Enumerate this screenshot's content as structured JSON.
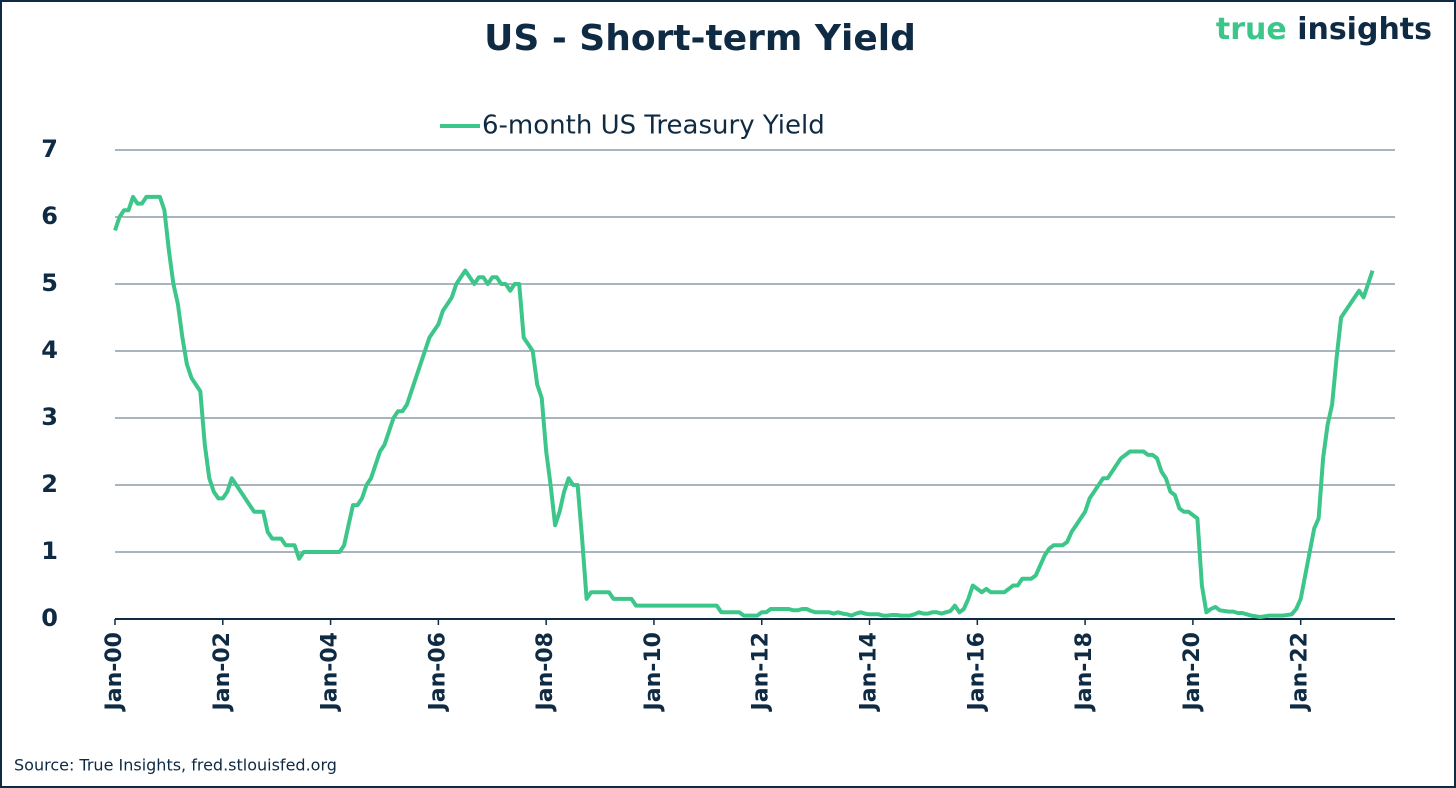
{
  "chart_data": {
    "type": "line",
    "title": "US - Short-term Yield",
    "brand": {
      "first": "true",
      "second": "insights"
    },
    "source": "Source: True Insights, fred.stlouisfed.org",
    "x": [
      "2000-01",
      "2000-02",
      "2000-03",
      "2000-04",
      "2000-05",
      "2000-06",
      "2000-07",
      "2000-08",
      "2000-09",
      "2000-10",
      "2000-11",
      "2000-12",
      "2001-01",
      "2001-02",
      "2001-03",
      "2001-04",
      "2001-05",
      "2001-06",
      "2001-07",
      "2001-08",
      "2001-09",
      "2001-10",
      "2001-11",
      "2001-12",
      "2002-01",
      "2002-02",
      "2002-03",
      "2002-04",
      "2002-05",
      "2002-06",
      "2002-07",
      "2002-08",
      "2002-09",
      "2002-10",
      "2002-11",
      "2002-12",
      "2003-01",
      "2003-02",
      "2003-03",
      "2003-04",
      "2003-05",
      "2003-06",
      "2003-07",
      "2003-08",
      "2003-09",
      "2003-10",
      "2003-11",
      "2003-12",
      "2004-01",
      "2004-02",
      "2004-03",
      "2004-04",
      "2004-05",
      "2004-06",
      "2004-07",
      "2004-08",
      "2004-09",
      "2004-10",
      "2004-11",
      "2004-12",
      "2005-01",
      "2005-02",
      "2005-03",
      "2005-04",
      "2005-05",
      "2005-06",
      "2005-07",
      "2005-08",
      "2005-09",
      "2005-10",
      "2005-11",
      "2005-12",
      "2006-01",
      "2006-02",
      "2006-03",
      "2006-04",
      "2006-05",
      "2006-06",
      "2006-07",
      "2006-08",
      "2006-09",
      "2006-10",
      "2006-11",
      "2006-12",
      "2007-01",
      "2007-02",
      "2007-03",
      "2007-04",
      "2007-05",
      "2007-06",
      "2007-07",
      "2007-08",
      "2007-09",
      "2007-10",
      "2007-11",
      "2007-12",
      "2008-01",
      "2008-02",
      "2008-03",
      "2008-04",
      "2008-05",
      "2008-06",
      "2008-07",
      "2008-08",
      "2008-09",
      "2008-10",
      "2008-11",
      "2008-12",
      "2009-01",
      "2009-02",
      "2009-03",
      "2009-04",
      "2009-05",
      "2009-06",
      "2009-07",
      "2009-08",
      "2009-09",
      "2009-10",
      "2009-11",
      "2009-12",
      "2010-01",
      "2010-02",
      "2010-03",
      "2010-04",
      "2010-05",
      "2010-06",
      "2010-07",
      "2010-08",
      "2010-09",
      "2010-10",
      "2010-11",
      "2010-12",
      "2011-01",
      "2011-02",
      "2011-03",
      "2011-04",
      "2011-05",
      "2011-06",
      "2011-07",
      "2011-08",
      "2011-09",
      "2011-10",
      "2011-11",
      "2011-12",
      "2012-01",
      "2012-02",
      "2012-03",
      "2012-04",
      "2012-05",
      "2012-06",
      "2012-07",
      "2012-08",
      "2012-09",
      "2012-10",
      "2012-11",
      "2012-12",
      "2013-01",
      "2013-02",
      "2013-03",
      "2013-04",
      "2013-05",
      "2013-06",
      "2013-07",
      "2013-08",
      "2013-09",
      "2013-10",
      "2013-11",
      "2013-12",
      "2014-01",
      "2014-02",
      "2014-03",
      "2014-04",
      "2014-05",
      "2014-06",
      "2014-07",
      "2014-08",
      "2014-09",
      "2014-10",
      "2014-11",
      "2014-12",
      "2015-01",
      "2015-02",
      "2015-03",
      "2015-04",
      "2015-05",
      "2015-06",
      "2015-07",
      "2015-08",
      "2015-09",
      "2015-10",
      "2015-11",
      "2015-12",
      "2016-01",
      "2016-02",
      "2016-03",
      "2016-04",
      "2016-05",
      "2016-06",
      "2016-07",
      "2016-08",
      "2016-09",
      "2016-10",
      "2016-11",
      "2016-12",
      "2017-01",
      "2017-02",
      "2017-03",
      "2017-04",
      "2017-05",
      "2017-06",
      "2017-07",
      "2017-08",
      "2017-09",
      "2017-10",
      "2017-11",
      "2017-12",
      "2018-01",
      "2018-02",
      "2018-03",
      "2018-04",
      "2018-05",
      "2018-06",
      "2018-07",
      "2018-08",
      "2018-09",
      "2018-10",
      "2018-11",
      "2018-12",
      "2019-01",
      "2019-02",
      "2019-03",
      "2019-04",
      "2019-05",
      "2019-06",
      "2019-07",
      "2019-08",
      "2019-09",
      "2019-10",
      "2019-11",
      "2019-12",
      "2020-01",
      "2020-02",
      "2020-03",
      "2020-04",
      "2020-05",
      "2020-06",
      "2020-07",
      "2020-08",
      "2020-09",
      "2020-10",
      "2020-11",
      "2020-12",
      "2021-01",
      "2021-02",
      "2021-03",
      "2021-04",
      "2021-05",
      "2021-06",
      "2021-07",
      "2021-08",
      "2021-09",
      "2021-10",
      "2021-11",
      "2021-12",
      "2022-01",
      "2022-02",
      "2022-03",
      "2022-04",
      "2022-05",
      "2022-06",
      "2022-07",
      "2022-08",
      "2022-09",
      "2022-10",
      "2022-11",
      "2022-12",
      "2023-01",
      "2023-02",
      "2023-03",
      "2023-04",
      "2023-05"
    ],
    "series": [
      {
        "name": "6-month US Treasury Yield",
        "color": "#3cc68a",
        "values": [
          5.8,
          6.0,
          6.1,
          6.1,
          6.3,
          6.2,
          6.2,
          6.3,
          6.3,
          6.3,
          6.3,
          6.1,
          5.5,
          5.0,
          4.7,
          4.2,
          3.8,
          3.6,
          3.5,
          3.4,
          2.6,
          2.1,
          1.9,
          1.8,
          1.8,
          1.9,
          2.1,
          2.0,
          1.9,
          1.8,
          1.7,
          1.6,
          1.6,
          1.6,
          1.3,
          1.2,
          1.2,
          1.2,
          1.1,
          1.1,
          1.1,
          0.9,
          1.0,
          1.0,
          1.0,
          1.0,
          1.0,
          1.0,
          1.0,
          1.0,
          1.0,
          1.1,
          1.4,
          1.7,
          1.7,
          1.8,
          2.0,
          2.1,
          2.3,
          2.5,
          2.6,
          2.8,
          3.0,
          3.1,
          3.1,
          3.2,
          3.4,
          3.6,
          3.8,
          4.0,
          4.2,
          4.3,
          4.4,
          4.6,
          4.7,
          4.8,
          5.0,
          5.1,
          5.2,
          5.1,
          5.0,
          5.1,
          5.1,
          5.0,
          5.1,
          5.1,
          5.0,
          5.0,
          4.9,
          5.0,
          5.0,
          4.2,
          4.1,
          4.0,
          3.5,
          3.3,
          2.5,
          2.0,
          1.4,
          1.6,
          1.9,
          2.1,
          2.0,
          2.0,
          1.2,
          0.3,
          0.4,
          0.4,
          0.4,
          0.4,
          0.4,
          0.3,
          0.3,
          0.3,
          0.3,
          0.3,
          0.2,
          0.2,
          0.2,
          0.2,
          0.2,
          0.2,
          0.2,
          0.2,
          0.2,
          0.2,
          0.2,
          0.2,
          0.2,
          0.2,
          0.2,
          0.2,
          0.2,
          0.2,
          0.2,
          0.1,
          0.1,
          0.1,
          0.1,
          0.1,
          0.05,
          0.05,
          0.05,
          0.05,
          0.1,
          0.1,
          0.15,
          0.15,
          0.15,
          0.15,
          0.15,
          0.13,
          0.13,
          0.15,
          0.15,
          0.12,
          0.1,
          0.1,
          0.1,
          0.1,
          0.08,
          0.1,
          0.08,
          0.07,
          0.05,
          0.08,
          0.1,
          0.08,
          0.07,
          0.07,
          0.07,
          0.05,
          0.05,
          0.06,
          0.06,
          0.05,
          0.05,
          0.05,
          0.07,
          0.1,
          0.08,
          0.08,
          0.1,
          0.1,
          0.08,
          0.1,
          0.12,
          0.2,
          0.1,
          0.15,
          0.3,
          0.5,
          0.45,
          0.4,
          0.45,
          0.4,
          0.4,
          0.4,
          0.4,
          0.45,
          0.5,
          0.5,
          0.6,
          0.6,
          0.6,
          0.65,
          0.8,
          0.95,
          1.05,
          1.1,
          1.1,
          1.1,
          1.15,
          1.3,
          1.4,
          1.5,
          1.6,
          1.8,
          1.9,
          2.0,
          2.1,
          2.1,
          2.2,
          2.3,
          2.4,
          2.45,
          2.5,
          2.5,
          2.5,
          2.5,
          2.45,
          2.45,
          2.4,
          2.2,
          2.1,
          1.9,
          1.85,
          1.65,
          1.6,
          1.6,
          1.55,
          1.5,
          0.5,
          0.1,
          0.15,
          0.18,
          0.13,
          0.12,
          0.11,
          0.11,
          0.09,
          0.09,
          0.07,
          0.05,
          0.04,
          0.03,
          0.04,
          0.05,
          0.05,
          0.05,
          0.05,
          0.06,
          0.07,
          0.15,
          0.3,
          0.65,
          1.0,
          1.35,
          1.5,
          2.4,
          2.9,
          3.2,
          3.9,
          4.5,
          4.6,
          4.7,
          4.8,
          4.9,
          4.8,
          5.0,
          5.2
        ]
      }
    ],
    "xlim": [
      "2000-01",
      "2023-10"
    ],
    "xticks": [
      {
        "value": "2000-01",
        "label": "Jan-00"
      },
      {
        "value": "2002-01",
        "label": "Jan-02"
      },
      {
        "value": "2004-01",
        "label": "Jan-04"
      },
      {
        "value": "2006-01",
        "label": "Jan-06"
      },
      {
        "value": "2008-01",
        "label": "Jan-08"
      },
      {
        "value": "2010-01",
        "label": "Jan-10"
      },
      {
        "value": "2012-01",
        "label": "Jan-12"
      },
      {
        "value": "2014-01",
        "label": "Jan-14"
      },
      {
        "value": "2016-01",
        "label": "Jan-16"
      },
      {
        "value": "2018-01",
        "label": "Jan-18"
      },
      {
        "value": "2020-01",
        "label": "Jan-20"
      },
      {
        "value": "2022-01",
        "label": "Jan-22"
      }
    ],
    "ylim": [
      0,
      7
    ],
    "yticks": [
      0,
      1,
      2,
      3,
      4,
      5,
      6,
      7
    ],
    "grid": true,
    "legend": "top"
  }
}
